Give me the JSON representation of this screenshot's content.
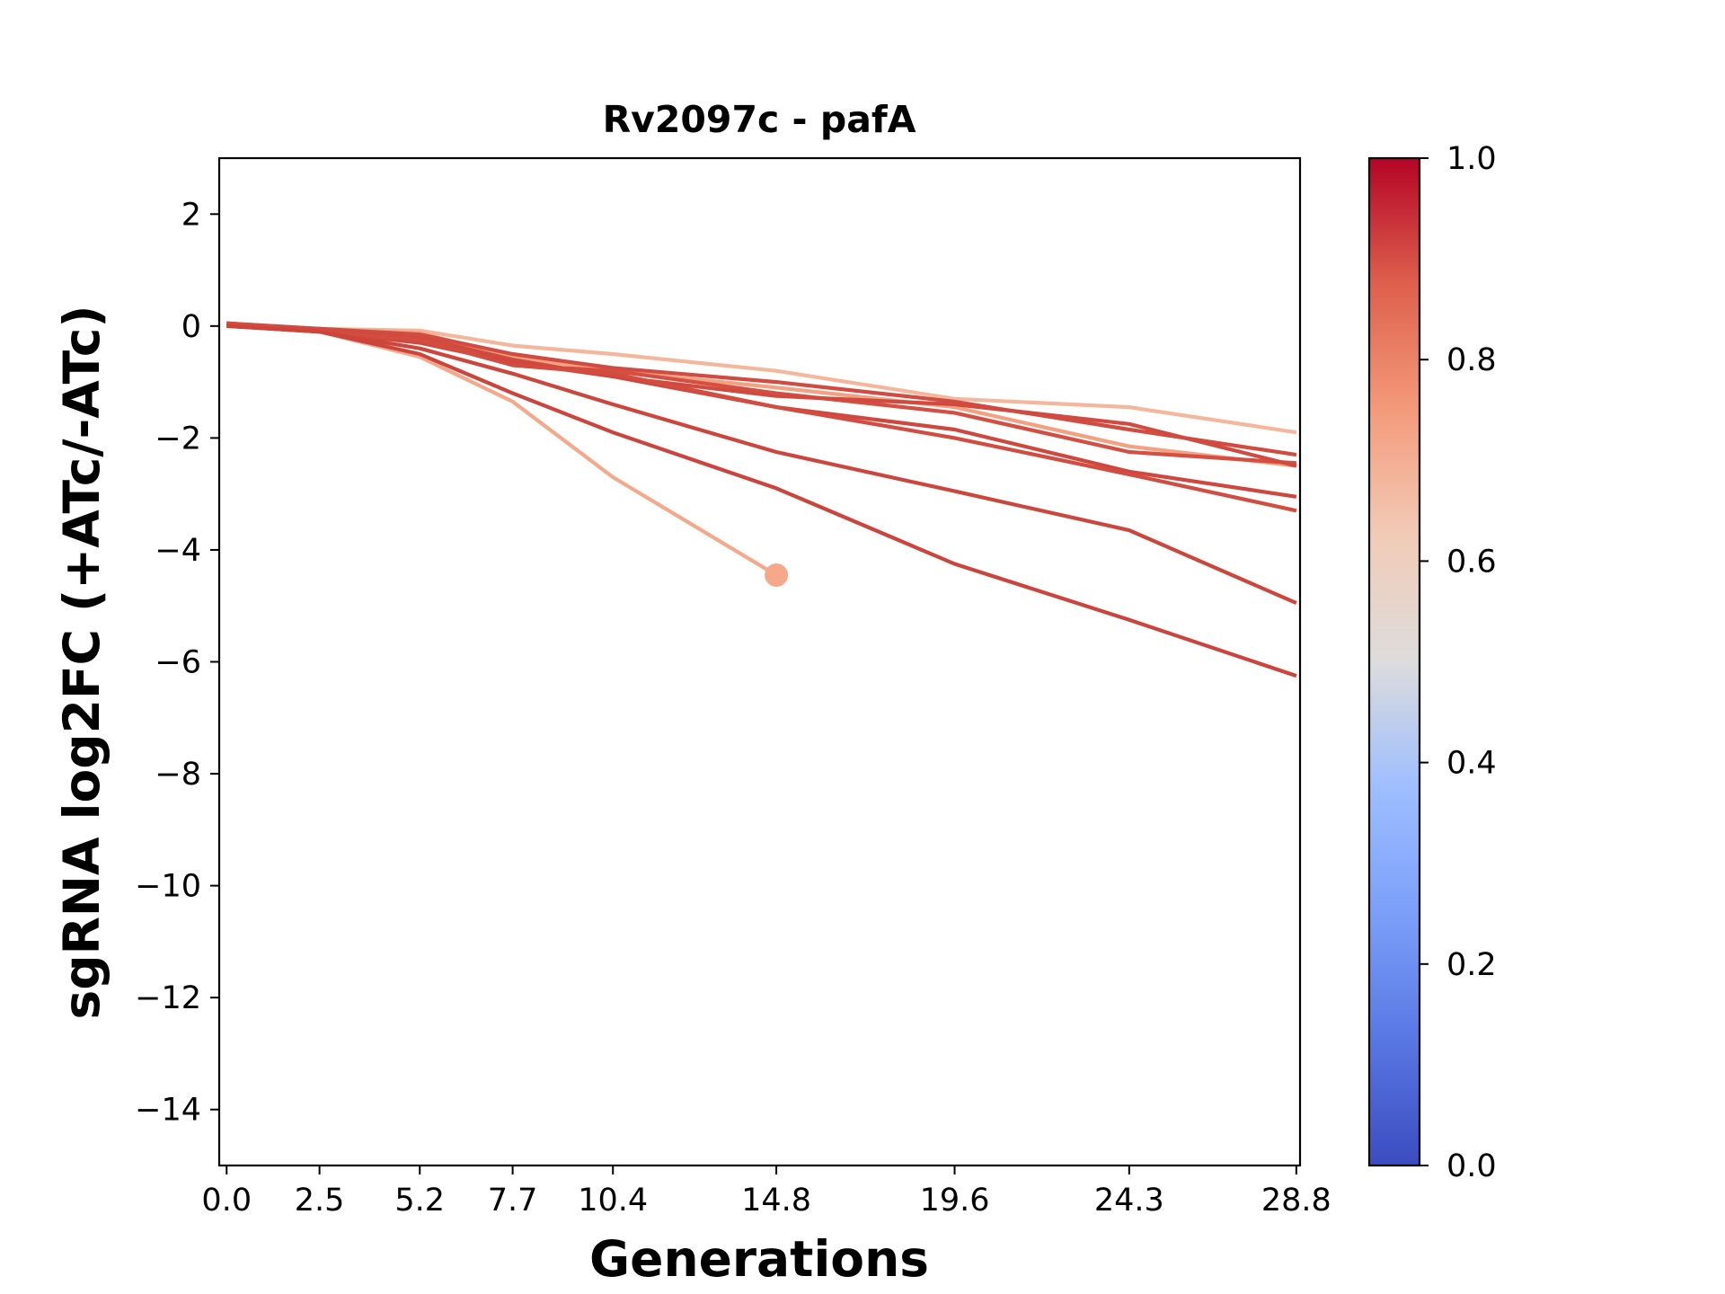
{
  "chart_data": {
    "type": "line",
    "title": "Rv2097c - pafA",
    "xlabel": "Generations",
    "ylabel": "sgRNA log2FC (+ATc/-ATc)",
    "x_tick_labels": [
      "0.0",
      "2.5",
      "5.2",
      "7.7",
      "10.4",
      "14.8",
      "19.6",
      "24.3",
      "28.8"
    ],
    "x_ticks": [
      0.0,
      2.5,
      5.2,
      7.7,
      10.4,
      14.8,
      19.6,
      24.3,
      28.8
    ],
    "xlim": [
      -0.2,
      28.9
    ],
    "y_ticks": [
      2,
      0,
      -2,
      -4,
      -6,
      -8,
      -10,
      -12,
      -14
    ],
    "y_tick_labels": [
      "2",
      "0",
      "−2",
      "−4",
      "−6",
      "−8",
      "−10",
      "−12",
      "−14"
    ],
    "ylim": [
      -15,
      3
    ],
    "grid": false,
    "colorbar": {
      "colormap": "coolwarm",
      "range": [
        0.0,
        1.0
      ],
      "tick_labels": [
        "0.0",
        "0.2",
        "0.4",
        "0.6",
        "0.8",
        "1.0"
      ],
      "ticks": [
        0.0,
        0.2,
        0.4,
        0.6,
        0.8,
        1.0
      ]
    },
    "series": [
      {
        "color_value": 0.66,
        "color": "#f4b79b",
        "x": [
          0.0,
          2.5,
          5.2,
          7.7,
          10.4,
          14.8,
          19.6,
          24.3,
          28.8
        ],
        "y": [
          0.02,
          -0.05,
          -0.08,
          -0.35,
          -0.5,
          -0.8,
          -1.3,
          -1.45,
          -1.9
        ]
      },
      {
        "color_value": 0.68,
        "color": "#f5a98a",
        "x": [
          0.0,
          2.5,
          5.2,
          7.7,
          10.4,
          14.8
        ],
        "y": [
          0.0,
          -0.1,
          -0.55,
          -1.35,
          -2.7,
          -4.45
        ],
        "marker": "end"
      },
      {
        "color_value": 0.7,
        "color": "#f4a181",
        "x": [
          0.0,
          2.5,
          5.2,
          7.7,
          10.4,
          14.8,
          19.6,
          24.3,
          28.8
        ],
        "y": [
          0.05,
          -0.05,
          -0.12,
          -0.55,
          -0.8,
          -1.1,
          -1.45,
          -2.15,
          -2.5
        ]
      },
      {
        "color_value": 0.9,
        "color": "#d24b40",
        "x": [
          0.0,
          2.5,
          5.2,
          7.7,
          10.4,
          14.8,
          19.6,
          24.3,
          28.8
        ],
        "y": [
          0.05,
          -0.05,
          -0.15,
          -0.5,
          -0.75,
          -1.0,
          -1.35,
          -1.85,
          -2.3
        ]
      },
      {
        "color_value": 0.9,
        "color": "#d44e41",
        "x": [
          0.0,
          2.5,
          5.2,
          7.7,
          10.4,
          14.8,
          19.6,
          24.3,
          28.8
        ],
        "y": [
          0.05,
          -0.08,
          -0.18,
          -0.7,
          -0.8,
          -1.2,
          -1.55,
          -2.25,
          -2.45
        ]
      },
      {
        "color_value": 0.9,
        "color": "#d04a3f",
        "x": [
          0.0,
          2.5,
          5.2,
          7.7,
          10.4,
          14.8,
          19.6,
          24.3,
          28.8
        ],
        "y": [
          0.0,
          -0.05,
          -0.2,
          -0.6,
          -0.9,
          -1.25,
          -1.4,
          -1.75,
          -2.5
        ]
      },
      {
        "color_value": 0.9,
        "color": "#cf473d",
        "x": [
          0.0,
          2.5,
          5.2,
          7.7,
          10.4,
          14.8,
          19.6,
          24.3,
          28.8
        ],
        "y": [
          0.05,
          -0.1,
          -0.3,
          -0.65,
          -0.9,
          -1.45,
          -1.85,
          -2.6,
          -3.05
        ]
      },
      {
        "color_value": 0.9,
        "color": "#d24c40",
        "x": [
          0.0,
          2.5,
          5.2,
          7.7,
          10.4,
          14.8,
          19.6,
          24.3,
          28.8
        ],
        "y": [
          0.05,
          -0.1,
          -0.25,
          -0.7,
          -0.85,
          -1.45,
          -2.0,
          -2.65,
          -3.3
        ]
      },
      {
        "color_value": 0.9,
        "color": "#cd463c",
        "x": [
          0.0,
          2.5,
          5.2,
          7.7,
          10.4,
          14.8,
          19.6,
          24.3,
          28.8
        ],
        "y": [
          0.0,
          -0.1,
          -0.4,
          -0.85,
          -1.4,
          -2.25,
          -2.95,
          -3.65,
          -4.95
        ]
      },
      {
        "color_value": 0.9,
        "color": "#cc443b",
        "x": [
          0.0,
          2.5,
          5.2,
          7.7,
          10.4,
          14.8,
          19.6,
          24.3,
          28.8
        ],
        "y": [
          0.0,
          -0.1,
          -0.5,
          -1.2,
          -1.9,
          -2.9,
          -4.25,
          -5.25,
          -6.25
        ]
      }
    ]
  }
}
